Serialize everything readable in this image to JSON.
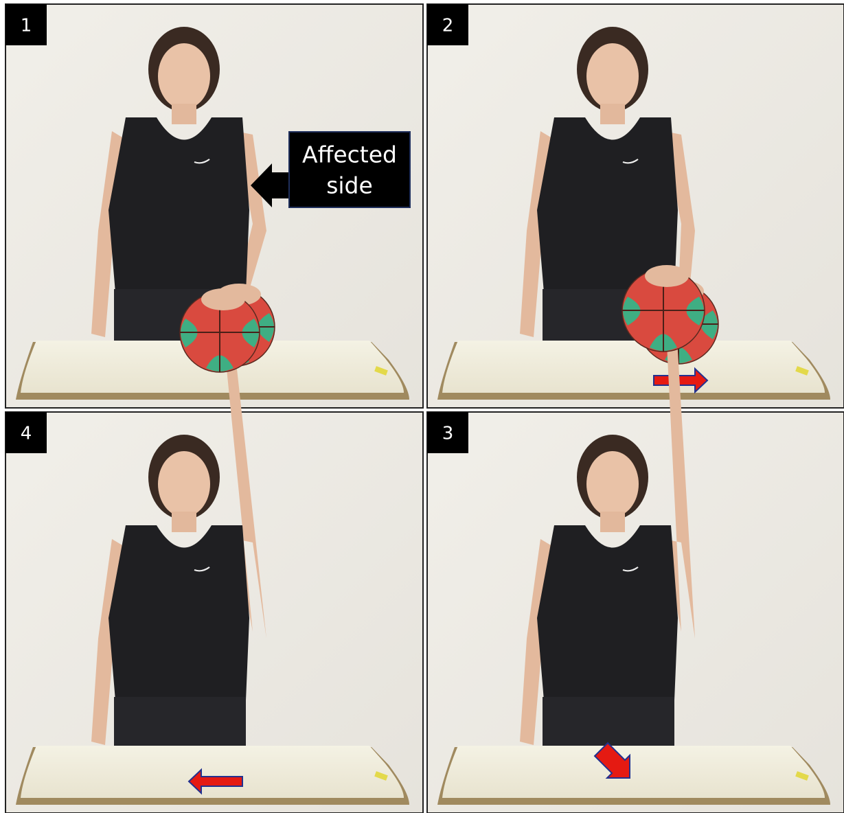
{
  "panels": [
    {
      "number": "1",
      "annotation": [
        "Affected",
        "side"
      ]
    },
    {
      "number": "2"
    },
    {
      "number": "4"
    },
    {
      "number": "3"
    }
  ]
}
